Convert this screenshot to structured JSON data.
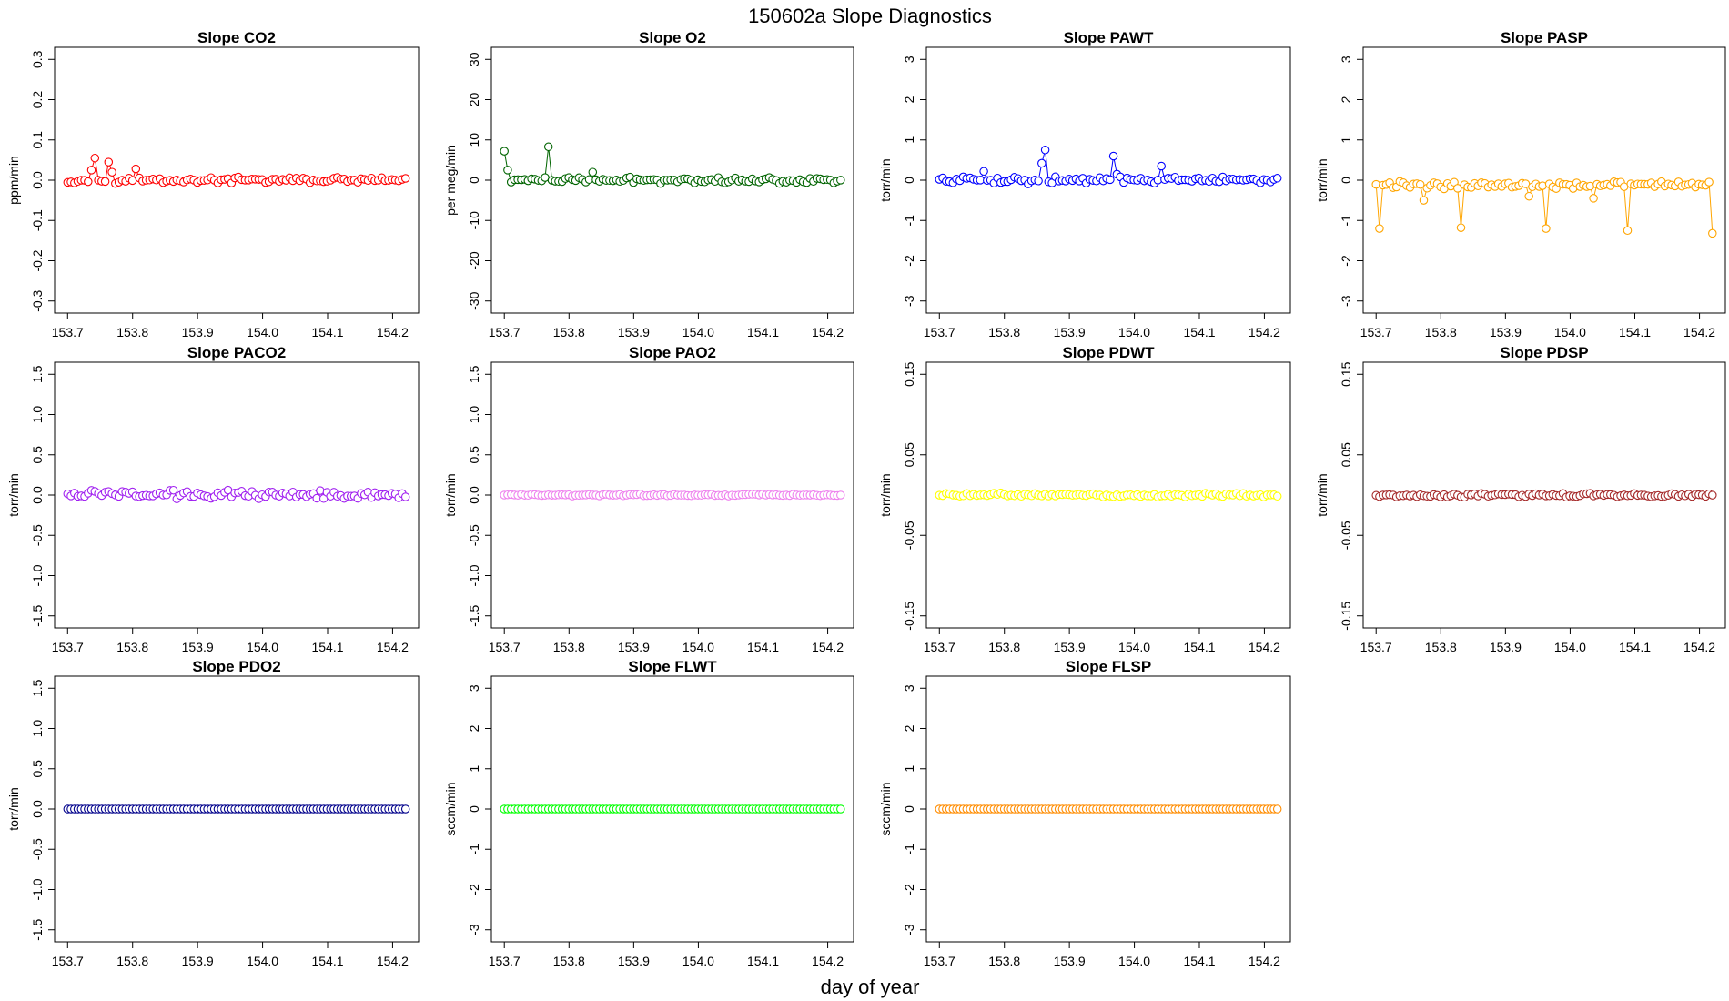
{
  "figure": {
    "title": "150602a   Slope Diagnostics",
    "xlabel": "day of year"
  },
  "chart_data": [
    {
      "type": "scatter",
      "title": "Slope CO2",
      "ylabel": "ppm/min",
      "color": "#ff0000",
      "xlim": [
        153.68,
        154.24
      ],
      "ylim": [
        -0.33,
        0.33
      ],
      "yticks": [
        -0.3,
        -0.2,
        -0.1,
        0.0,
        0.1,
        0.2,
        0.3
      ],
      "ytick_labels": [
        "-0.3",
        "-0.2",
        "-0.1",
        "0.0",
        "0.1",
        "0.2",
        "0.3"
      ],
      "xticks": [
        153.7,
        153.8,
        153.9,
        154.0,
        154.1,
        154.2
      ],
      "xtick_labels": [
        "153.7",
        "153.8",
        "153.9",
        "154.0",
        "154.1",
        "154.2"
      ],
      "base": 0.0,
      "noise": 0.006,
      "spikes": [
        [
          153.74,
          0.055
        ],
        [
          153.735,
          0.025
        ],
        [
          153.765,
          0.045
        ],
        [
          153.77,
          0.02
        ],
        [
          153.805,
          0.028
        ]
      ],
      "x_start": 153.7,
      "x_end": 154.22,
      "n": 100
    },
    {
      "type": "scatter",
      "title": "Slope O2",
      "ylabel": "per meg/min",
      "color": "#006400",
      "xlim": [
        153.68,
        154.24
      ],
      "ylim": [
        -33,
        33
      ],
      "yticks": [
        -30,
        -20,
        -10,
        0,
        10,
        20,
        30
      ],
      "ytick_labels": [
        "-30",
        "-20",
        "-10",
        "0",
        "10",
        "20",
        "30"
      ],
      "xticks": [
        153.7,
        153.8,
        153.9,
        154.0,
        154.1,
        154.2
      ],
      "xtick_labels": [
        "153.7",
        "153.8",
        "153.9",
        "154.0",
        "154.1",
        "154.2"
      ],
      "base": 0.0,
      "noise": 0.6,
      "spikes": [
        [
          153.7,
          7.2
        ],
        [
          153.705,
          2.5
        ],
        [
          153.77,
          8.3
        ],
        [
          153.835,
          2.0
        ]
      ],
      "x_start": 153.7,
      "x_end": 154.22,
      "n": 100
    },
    {
      "type": "scatter",
      "title": "Slope PAWT",
      "ylabel": "torr/min",
      "color": "#0000ff",
      "xlim": [
        153.68,
        154.24
      ],
      "ylim": [
        -3.3,
        3.3
      ],
      "yticks": [
        -3,
        -2,
        -1,
        0,
        1,
        2,
        3
      ],
      "ytick_labels": [
        "-3",
        "-2",
        "-1",
        "0",
        "1",
        "2",
        "3"
      ],
      "xticks": [
        153.7,
        153.8,
        153.9,
        154.0,
        154.1,
        154.2
      ],
      "xtick_labels": [
        "153.7",
        "153.8",
        "153.9",
        "154.0",
        "154.1",
        "154.2"
      ],
      "base": 0.0,
      "noise": 0.07,
      "spikes": [
        [
          153.865,
          0.75
        ],
        [
          153.86,
          0.42
        ],
        [
          153.97,
          0.6
        ],
        [
          153.975,
          0.15
        ],
        [
          154.04,
          0.35
        ],
        [
          153.77,
          0.22
        ]
      ],
      "x_start": 153.7,
      "x_end": 154.22,
      "n": 100
    },
    {
      "type": "scatter",
      "title": "Slope PASP",
      "ylabel": "torr/min",
      "color": "#ffa500",
      "xlim": [
        153.68,
        154.24
      ],
      "ylim": [
        -3.3,
        3.3
      ],
      "yticks": [
        -3,
        -2,
        -1,
        0,
        1,
        2,
        3
      ],
      "ytick_labels": [
        "-3",
        "-2",
        "-1",
        "0",
        "1",
        "2",
        "3"
      ],
      "xticks": [
        153.7,
        153.8,
        153.9,
        154.0,
        154.1,
        154.2
      ],
      "xtick_labels": [
        "153.7",
        "153.8",
        "153.9",
        "154.0",
        "154.1",
        "154.2"
      ],
      "base": -0.12,
      "noise": 0.08,
      "spikes": [
        [
          153.705,
          -1.2
        ],
        [
          153.83,
          -1.18
        ],
        [
          153.96,
          -1.2
        ],
        [
          154.09,
          -1.25
        ],
        [
          154.22,
          -1.32
        ],
        [
          153.775,
          -0.5
        ],
        [
          153.935,
          -0.4
        ],
        [
          154.035,
          -0.45
        ]
      ],
      "x_start": 153.7,
      "x_end": 154.22,
      "n": 100
    },
    {
      "type": "scatter",
      "title": "Slope PACO2",
      "ylabel": "torr/min",
      "color": "#a020f0",
      "xlim": [
        153.68,
        154.24
      ],
      "ylim": [
        -1.65,
        1.65
      ],
      "yticks": [
        -1.5,
        -1.0,
        -0.5,
        0.0,
        0.5,
        1.0,
        1.5
      ],
      "ytick_labels": [
        "-1.5",
        "-1.0",
        "-0.5",
        "0.0",
        "0.5",
        "1.0",
        "1.5"
      ],
      "xticks": [
        153.7,
        153.8,
        153.9,
        154.0,
        154.1,
        154.2
      ],
      "xtick_labels": [
        "153.7",
        "153.8",
        "153.9",
        "154.0",
        "154.1",
        "154.2"
      ],
      "base": 0.01,
      "noise": 0.045,
      "spikes": [],
      "x_start": 153.7,
      "x_end": 154.22,
      "n": 100
    },
    {
      "type": "scatter",
      "title": "Slope PAO2",
      "ylabel": "torr/min",
      "color": "#ee82ee",
      "xlim": [
        153.68,
        154.24
      ],
      "ylim": [
        -1.65,
        1.65
      ],
      "yticks": [
        -1.5,
        -1.0,
        -0.5,
        0.0,
        0.5,
        1.0,
        1.5
      ],
      "ytick_labels": [
        "-1.5",
        "-1.0",
        "-0.5",
        "0.0",
        "0.5",
        "1.0",
        "1.5"
      ],
      "xticks": [
        153.7,
        153.8,
        153.9,
        154.0,
        154.1,
        154.2
      ],
      "xtick_labels": [
        "153.7",
        "153.8",
        "153.9",
        "154.0",
        "154.1",
        "154.2"
      ],
      "base": 0.0,
      "noise": 0.01,
      "spikes": [],
      "x_start": 153.7,
      "x_end": 154.22,
      "n": 100
    },
    {
      "type": "scatter",
      "title": "Slope PDWT",
      "ylabel": "torr/min",
      "color": "#ffff00",
      "xlim": [
        153.68,
        154.24
      ],
      "ylim": [
        -0.165,
        0.165
      ],
      "yticks": [
        -0.15,
        -0.05,
        0.05,
        0.15
      ],
      "ytick_labels": [
        "-0.15",
        "-0.05",
        "0.05",
        "0.15"
      ],
      "xticks": [
        153.7,
        153.8,
        153.9,
        154.0,
        154.1,
        154.2
      ],
      "xtick_labels": [
        "153.7",
        "153.8",
        "153.9",
        "154.0",
        "154.1",
        "154.2"
      ],
      "base": 0.0,
      "noise": 0.002,
      "spikes": [],
      "x_start": 153.7,
      "x_end": 154.22,
      "n": 100
    },
    {
      "type": "scatter",
      "title": "Slope PDSP",
      "ylabel": "torr/min",
      "color": "#a52a2a",
      "xlim": [
        153.68,
        154.24
      ],
      "ylim": [
        -0.165,
        0.165
      ],
      "yticks": [
        -0.15,
        -0.05,
        0.05,
        0.15
      ],
      "ytick_labels": [
        "-0.15",
        "-0.05",
        "0.05",
        "0.15"
      ],
      "xticks": [
        153.7,
        153.8,
        153.9,
        154.0,
        154.1,
        154.2
      ],
      "xtick_labels": [
        "153.7",
        "153.8",
        "153.9",
        "154.0",
        "154.1",
        "154.2"
      ],
      "base": 0.0,
      "noise": 0.002,
      "spikes": [],
      "x_start": 153.7,
      "x_end": 154.22,
      "n": 100
    },
    {
      "type": "scatter",
      "title": "Slope PDO2",
      "ylabel": "torr/min",
      "color": "#00008b",
      "xlim": [
        153.68,
        154.24
      ],
      "ylim": [
        -1.65,
        1.65
      ],
      "yticks": [
        -1.5,
        -1.0,
        -0.5,
        0.0,
        0.5,
        1.0,
        1.5
      ],
      "ytick_labels": [
        "-1.5",
        "-1.0",
        "-0.5",
        "0.0",
        "0.5",
        "1.0",
        "1.5"
      ],
      "xticks": [
        153.7,
        153.8,
        153.9,
        154.0,
        154.1,
        154.2
      ],
      "xtick_labels": [
        "153.7",
        "153.8",
        "153.9",
        "154.0",
        "154.1",
        "154.2"
      ],
      "base": 0.0,
      "noise": 0.0,
      "spikes": [],
      "x_start": 153.7,
      "x_end": 154.22,
      "n": 100
    },
    {
      "type": "scatter",
      "title": "Slope FLWT",
      "ylabel": "sccm/min",
      "color": "#00ff00",
      "xlim": [
        153.68,
        154.24
      ],
      "ylim": [
        -3.3,
        3.3
      ],
      "yticks": [
        -3,
        -2,
        -1,
        0,
        1,
        2,
        3
      ],
      "ytick_labels": [
        "-3",
        "-2",
        "-1",
        "0",
        "1",
        "2",
        "3"
      ],
      "xticks": [
        153.7,
        153.8,
        153.9,
        154.0,
        154.1,
        154.2
      ],
      "xtick_labels": [
        "153.7",
        "153.8",
        "153.9",
        "154.0",
        "154.1",
        "154.2"
      ],
      "base": 0.0,
      "noise": 0.0,
      "spikes": [],
      "x_start": 153.7,
      "x_end": 154.22,
      "n": 100
    },
    {
      "type": "scatter",
      "title": "Slope FLSP",
      "ylabel": "sccm/min",
      "color": "#ff8c00",
      "xlim": [
        153.68,
        154.24
      ],
      "ylim": [
        -3.3,
        3.3
      ],
      "yticks": [
        -3,
        -2,
        -1,
        0,
        1,
        2,
        3
      ],
      "ytick_labels": [
        "-3",
        "-2",
        "-1",
        "0",
        "1",
        "2",
        "3"
      ],
      "xticks": [
        153.7,
        153.8,
        153.9,
        154.0,
        154.1,
        154.2
      ],
      "xtick_labels": [
        "153.7",
        "153.8",
        "153.9",
        "154.0",
        "154.1",
        "154.2"
      ],
      "base": 0.0,
      "noise": 0.0,
      "spikes": [],
      "x_start": 153.7,
      "x_end": 154.22,
      "n": 100
    }
  ]
}
